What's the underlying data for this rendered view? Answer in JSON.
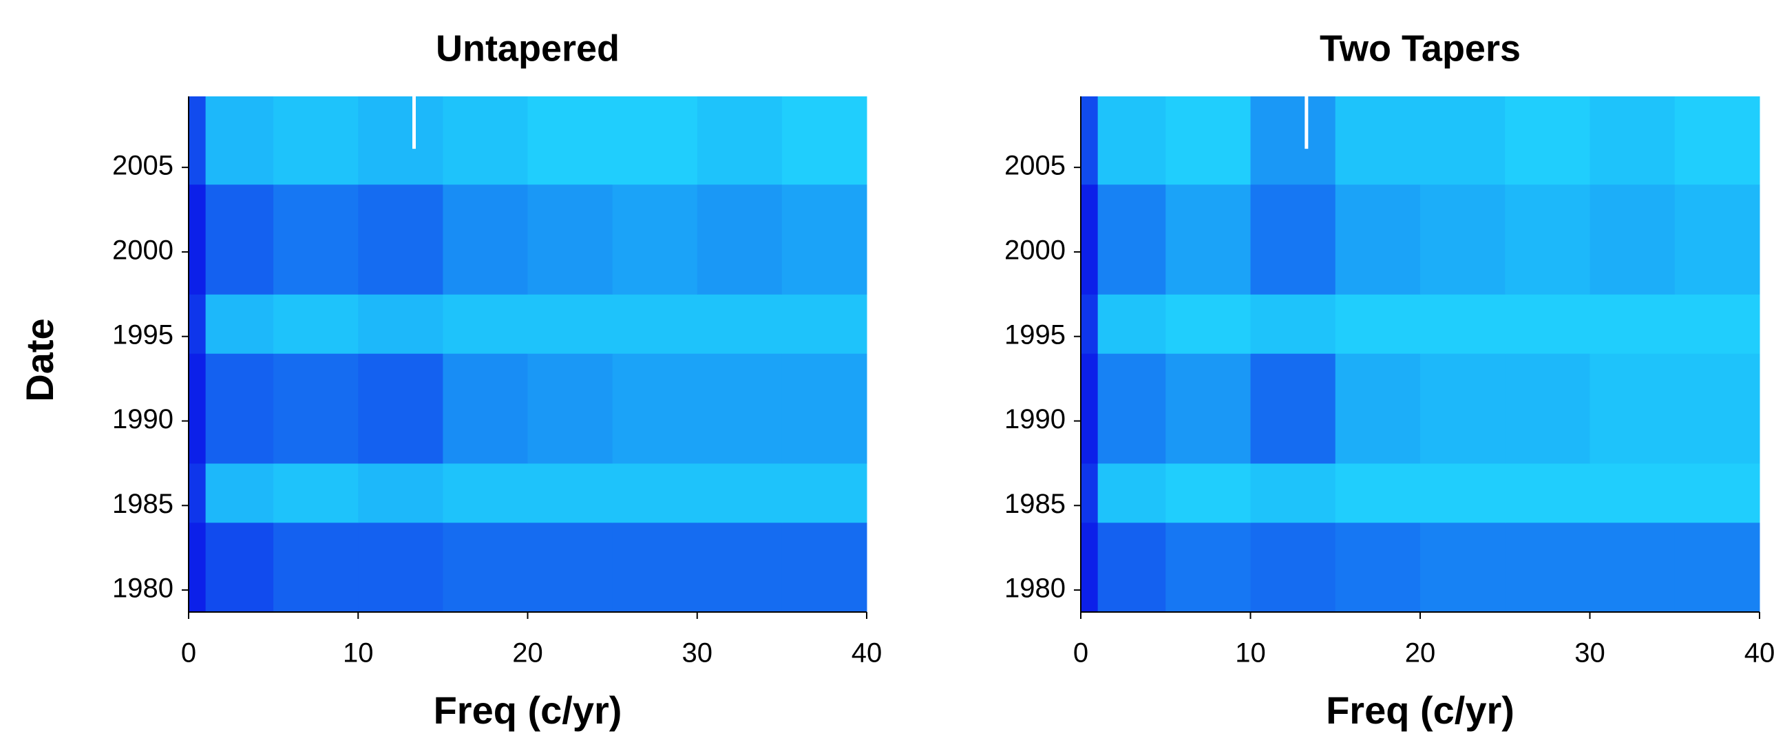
{
  "chart_data": [
    {
      "type": "heatmap",
      "title": "Untapered",
      "xlabel": "Freq (c/yr)",
      "ylabel": "Date",
      "xlim": [
        0,
        40
      ],
      "ylim": [
        1978.7,
        2009.2
      ],
      "xticks": [
        0,
        10,
        20,
        30,
        40
      ],
      "yticks": [
        1980,
        1985,
        1990,
        1995,
        2000,
        2005
      ],
      "x_bins": [
        0,
        1,
        5,
        10,
        15,
        20,
        25,
        30,
        35,
        40
      ],
      "y_bins": [
        1978.7,
        1984,
        1987.5,
        1994,
        1997.5,
        2004,
        2009.2
      ],
      "z": [
        [
          0.9,
          0.7,
          0.6,
          0.6,
          0.55,
          0.55,
          0.55,
          0.55,
          0.55
        ],
        [
          0.8,
          0.2,
          0.15,
          0.2,
          0.15,
          0.15,
          0.15,
          0.15,
          0.15
        ],
        [
          0.9,
          0.6,
          0.55,
          0.6,
          0.4,
          0.35,
          0.3,
          0.3,
          0.3
        ],
        [
          0.8,
          0.2,
          0.15,
          0.2,
          0.15,
          0.15,
          0.15,
          0.15,
          0.15
        ],
        [
          0.9,
          0.6,
          0.5,
          0.55,
          0.4,
          0.35,
          0.3,
          0.35,
          0.3
        ],
        [
          0.7,
          0.2,
          0.15,
          0.2,
          0.15,
          0.1,
          0.1,
          0.15,
          0.1
        ]
      ],
      "colors": [
        "#22e4ff",
        "#0a0ae6"
      ],
      "marker": {
        "x": 13.3,
        "y": [
          2006.1,
          2009.2
        ],
        "color": "#ffffff"
      }
    },
    {
      "type": "heatmap",
      "title": "Two Tapers",
      "xlabel": "Freq (c/yr)",
      "xlim": [
        0,
        40
      ],
      "ylim": [
        1978.7,
        2009.2
      ],
      "xticks": [
        0,
        10,
        20,
        30,
        40
      ],
      "yticks": [
        1980,
        1985,
        1990,
        1995,
        2000,
        2005
      ],
      "x_bins": [
        0,
        1,
        5,
        10,
        15,
        20,
        25,
        30,
        35,
        40
      ],
      "y_bins": [
        1978.7,
        1984,
        1987.5,
        1994,
        1997.5,
        2004,
        2009.2
      ],
      "z": [
        [
          0.9,
          0.6,
          0.5,
          0.55,
          0.5,
          0.45,
          0.45,
          0.45,
          0.45
        ],
        [
          0.8,
          0.15,
          0.1,
          0.15,
          0.1,
          0.1,
          0.1,
          0.1,
          0.1
        ],
        [
          0.9,
          0.45,
          0.35,
          0.55,
          0.25,
          0.2,
          0.2,
          0.15,
          0.15
        ],
        [
          0.8,
          0.15,
          0.1,
          0.15,
          0.1,
          0.1,
          0.1,
          0.1,
          0.1
        ],
        [
          0.9,
          0.45,
          0.3,
          0.5,
          0.3,
          0.25,
          0.2,
          0.25,
          0.2
        ],
        [
          0.7,
          0.15,
          0.1,
          0.35,
          0.15,
          0.15,
          0.1,
          0.15,
          0.1
        ]
      ],
      "colors": [
        "#22e4ff",
        "#0a0ae6"
      ],
      "marker": {
        "x": 13.3,
        "y": [
          2006.1,
          2009.2
        ],
        "color": "#ffffff"
      }
    }
  ]
}
